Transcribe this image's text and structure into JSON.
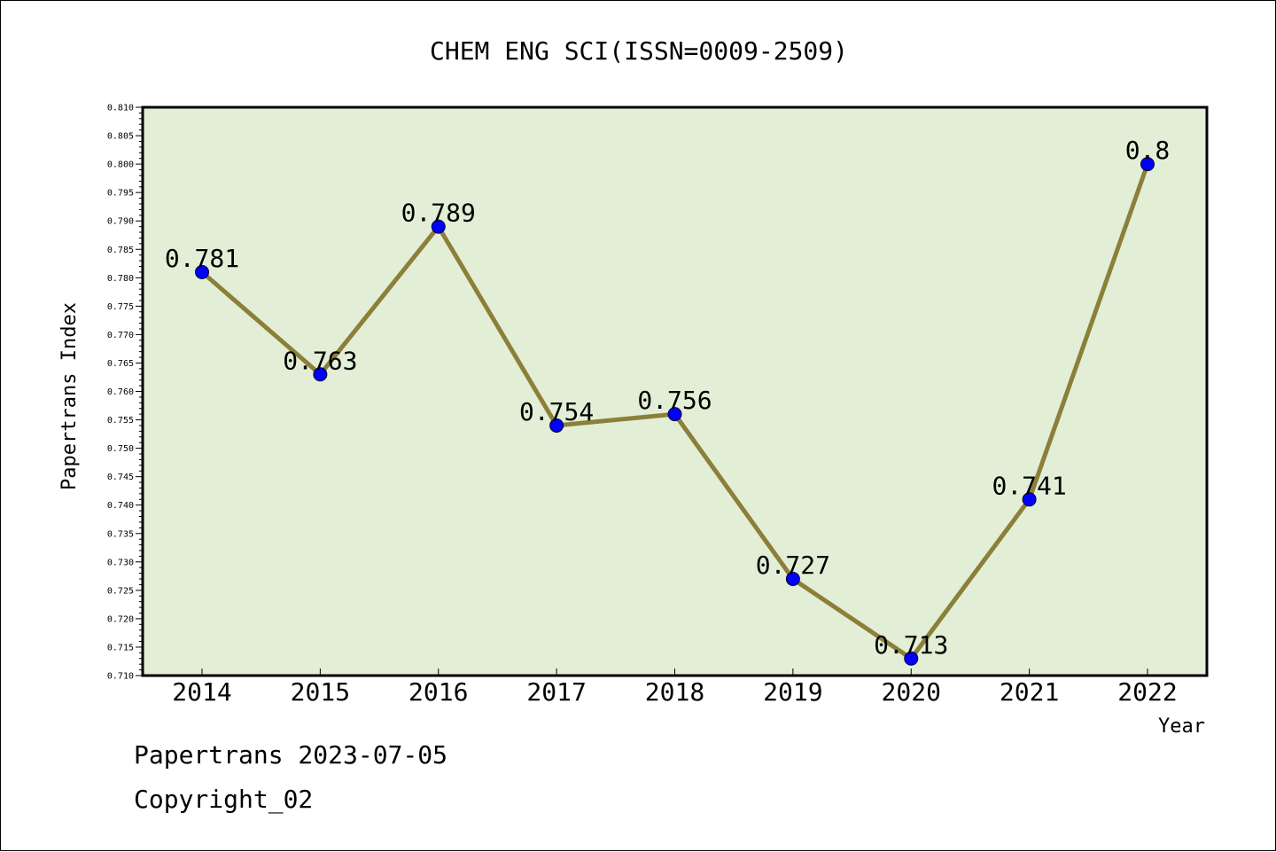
{
  "chart_data": {
    "type": "line",
    "title": "CHEM ENG SCI(ISSN=0009-2509)",
    "xlabel": "Year",
    "ylabel": "Papertrans Index",
    "categories": [
      "2014",
      "2015",
      "2016",
      "2017",
      "2018",
      "2019",
      "2020",
      "2021",
      "2022"
    ],
    "values": [
      0.781,
      0.763,
      0.789,
      0.754,
      0.756,
      0.727,
      0.713,
      0.741,
      0.8
    ],
    "data_labels": [
      "0.781",
      "0.763",
      "0.789",
      "0.754",
      "0.756",
      "0.727",
      "0.713",
      "0.741",
      "0.8"
    ],
    "ylim": [
      0.71,
      0.81
    ],
    "yticks": [
      "0.710",
      "0.715",
      "0.720",
      "0.725",
      "0.730",
      "0.735",
      "0.740",
      "0.745",
      "0.750",
      "0.755",
      "0.760",
      "0.765",
      "0.770",
      "0.775",
      "0.780",
      "0.785",
      "0.790",
      "0.795",
      "0.800",
      "0.805",
      "0.810"
    ],
    "grid": false,
    "legend": "none",
    "colors": {
      "plot_background": "#e2efd6",
      "line": "#8c7f3a",
      "marker": "#0000ff"
    }
  },
  "footer": {
    "line1": "Papertrans 2023-07-05",
    "line2": "Copyright_02"
  }
}
